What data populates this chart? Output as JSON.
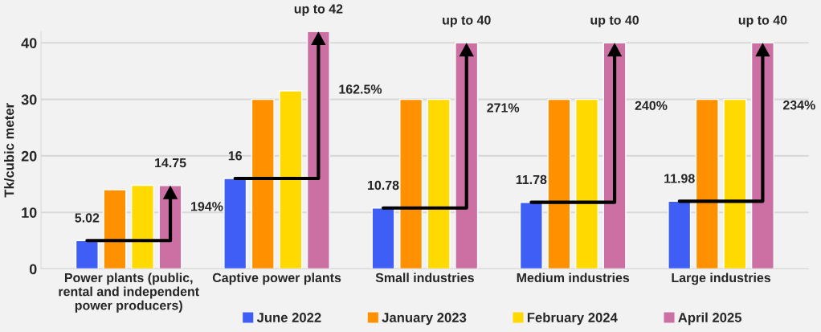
{
  "chart_data": {
    "type": "bar",
    "ylabel": "Tk/cubic meter",
    "categories": [
      "Power plants (public,\nrental and independent\npower producers)",
      "Captive power plants",
      "Small industries",
      "Medium industries",
      "Large industries"
    ],
    "series": [
      {
        "name": "June 2022",
        "color": "#3f5ef5",
        "values": [
          5.02,
          16,
          10.78,
          11.78,
          11.98
        ],
        "value_labels": [
          "5.02",
          "16",
          "10.78",
          "11.78",
          "11.98"
        ]
      },
      {
        "name": "January 2023",
        "color": "#ff9100",
        "values": [
          14,
          30,
          30,
          30,
          30
        ]
      },
      {
        "name": "February 2024",
        "color": "#ffd900",
        "values": [
          14.8,
          31.5,
          30,
          30,
          30
        ]
      },
      {
        "name": "April 2025",
        "color": "#cc6fa3",
        "values": [
          14.75,
          42,
          40,
          40,
          40
        ],
        "value_labels": [
          "14.75",
          "up to 42",
          "up to 40",
          "up to 40",
          "up to 40"
        ]
      }
    ],
    "annotations": [
      "194%",
      "162.5%",
      "271%",
      "240%",
      "234%"
    ],
    "ylim": [
      0,
      42
    ],
    "yticks": [
      0,
      10,
      20,
      30,
      40
    ],
    "grid": "y",
    "legend": "bottom"
  }
}
